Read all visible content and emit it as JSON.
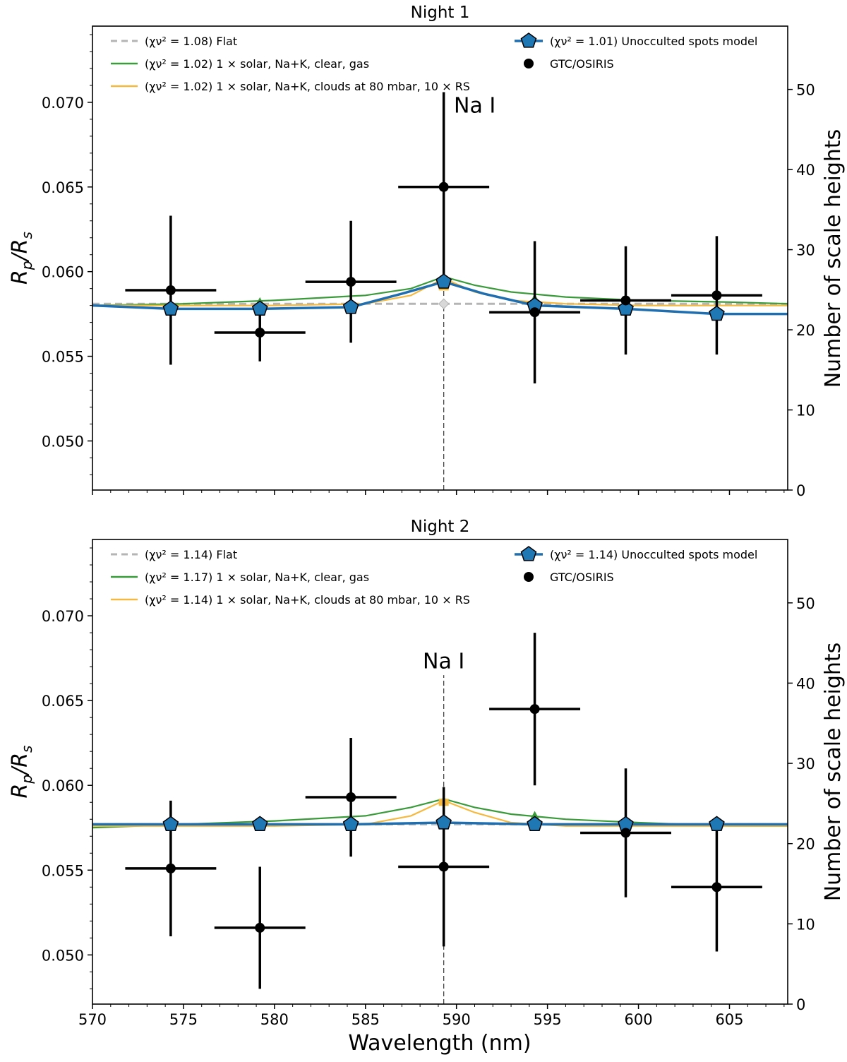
{
  "figure": {
    "xlabel": "Wavelength (nm)",
    "ylabel_left": "R_p/R_s",
    "ylabel_right": "Number of scale heights"
  },
  "chart_data": [
    {
      "type": "scatter",
      "title": "Night 1",
      "xlabel": "",
      "ylabel": "Rp/Rs",
      "y2label": "Number of scale heights",
      "xlim": [
        570,
        608.2
      ],
      "ylim": [
        0.0471,
        0.0745
      ],
      "y2lim": [
        0,
        57.9
      ],
      "xticks": [
        570,
        575,
        580,
        585,
        590,
        595,
        600,
        605
      ],
      "yticks": [
        0.05,
        0.055,
        0.06,
        0.065,
        0.07
      ],
      "ytick_labels": [
        "0.050",
        "0.055",
        "0.060",
        "0.065",
        "0.070"
      ],
      "y2ticks": [
        0,
        10,
        20,
        30,
        40,
        50
      ],
      "annotation": {
        "text": "Na I",
        "x": 589.3,
        "y": 0.0694,
        "line_from": 0.0471,
        "line_to": 0.0655
      },
      "legend_left": [
        {
          "key": "flat",
          "label": "(χν² = 1.08) Flat",
          "color": "#b5b5b5",
          "style": "dashed"
        },
        {
          "key": "clear",
          "label": "(χν² = 1.02) 1 × solar, Na+K, clear, gas",
          "color": "#3a9b3a",
          "style": "solid"
        },
        {
          "key": "clouds",
          "label": "(χν² = 1.02) 1 × solar, Na+K, clouds at 80 mbar, 10 × RS",
          "color": "#f5b93f",
          "style": "solid"
        }
      ],
      "legend_right": [
        {
          "key": "spots",
          "label": "(χν² = 1.01) Unocculted spots model",
          "color": "#1f6fb0",
          "style": "pentagon"
        },
        {
          "key": "data",
          "label": "GTC/OSIRIS",
          "color": "#000000",
          "style": "errorbar"
        }
      ],
      "series": [
        {
          "name": "Flat",
          "key": "flat",
          "x": [
            570,
            608.2
          ],
          "y": [
            0.0581,
            0.0581
          ]
        },
        {
          "name": "1 × solar, Na+K, clear, gas",
          "key": "clear",
          "x": [
            570,
            575,
            580,
            585,
            587.5,
            589.3,
            591,
            593,
            596,
            600,
            605,
            608.2
          ],
          "y": [
            0.058,
            0.0581,
            0.0583,
            0.0586,
            0.059,
            0.0597,
            0.0592,
            0.0588,
            0.0585,
            0.0583,
            0.0582,
            0.0581
          ]
        },
        {
          "name": "1 × solar, Na+K, clouds at 80 mbar, 10 × RS",
          "key": "clouds",
          "x": [
            570,
            575,
            580,
            585,
            587.5,
            589.3,
            591,
            593,
            596,
            600,
            605,
            608.2
          ],
          "y": [
            0.058,
            0.058,
            0.058,
            0.0581,
            0.0586,
            0.0596,
            0.0588,
            0.0583,
            0.0581,
            0.058,
            0.058,
            0.058
          ]
        },
        {
          "name": "Unocculted spots model",
          "key": "spots",
          "x": [
            570,
            574.3,
            579.2,
            584.2,
            587,
            589.3,
            591.5,
            594.3,
            599.3,
            604.3,
            608.2
          ],
          "y": [
            0.058,
            0.0578,
            0.0578,
            0.0579,
            0.0587,
            0.0594,
            0.0587,
            0.058,
            0.0578,
            0.0575,
            0.0575
          ]
        },
        {
          "name": "Flat (binned)",
          "key": "flat_markers",
          "x": [
            589.3
          ],
          "y": [
            0.0581
          ]
        },
        {
          "name": "Spots model (binned)",
          "key": "spots_markers",
          "x": [
            574.3,
            579.2,
            584.2,
            589.3,
            594.3,
            599.3,
            604.3
          ],
          "y": [
            0.0578,
            0.0578,
            0.0579,
            0.0594,
            0.058,
            0.0578,
            0.0575
          ]
        },
        {
          "name": "Clear model (binned)",
          "key": "clear_markers",
          "x": [
            579.2,
            594.3
          ],
          "y": [
            0.0582,
            0.0584
          ]
        },
        {
          "name": "Clouds model (binned)",
          "key": "clouds_markers",
          "x": [
            589.3
          ],
          "y": [
            0.0591
          ]
        },
        {
          "name": "GTC/OSIRIS",
          "key": "data",
          "x": [
            574.3,
            579.2,
            584.2,
            589.3,
            594.3,
            599.3,
            604.3
          ],
          "xerr": [
            2.5,
            2.5,
            2.5,
            2.5,
            2.5,
            2.5,
            2.5
          ],
          "y": [
            0.0589,
            0.0564,
            0.0594,
            0.065,
            0.0576,
            0.0583,
            0.0586
          ],
          "yerr": [
            0.0044,
            0.0017,
            0.0036,
            0.0056,
            0.0042,
            0.0032,
            0.0035
          ]
        }
      ]
    },
    {
      "type": "scatter",
      "title": "Night 2",
      "xlabel": "Wavelength (nm)",
      "ylabel": "Rp/Rs",
      "y2label": "Number of scale heights",
      "xlim": [
        570,
        608.2
      ],
      "ylim": [
        0.0471,
        0.0745
      ],
      "y2lim": [
        0,
        57.9
      ],
      "xticks": [
        570,
        575,
        580,
        585,
        590,
        595,
        600,
        605
      ],
      "yticks": [
        0.05,
        0.055,
        0.06,
        0.065,
        0.07
      ],
      "ytick_labels": [
        "0.050",
        "0.055",
        "0.060",
        "0.065",
        "0.070"
      ],
      "y2ticks": [
        0,
        10,
        20,
        30,
        40,
        50
      ],
      "annotation": {
        "text": "Na I",
        "x": 589.3,
        "y": 0.0669,
        "line_from": 0.0471,
        "line_to": 0.0665
      },
      "legend_left": [
        {
          "key": "flat",
          "label": "(χν² = 1.14) Flat",
          "color": "#b5b5b5",
          "style": "dashed"
        },
        {
          "key": "clear",
          "label": "(χν² = 1.17) 1 × solar, Na+K, clear, gas",
          "color": "#3a9b3a",
          "style": "solid"
        },
        {
          "key": "clouds",
          "label": "(χν² = 1.14) 1 × solar, Na+K, clouds at 80 mbar, 10 × RS",
          "color": "#f5b93f",
          "style": "solid"
        }
      ],
      "legend_right": [
        {
          "key": "spots",
          "label": "(χν² = 1.14) Unocculted spots model",
          "color": "#1f6fb0",
          "style": "pentagon"
        },
        {
          "key": "data",
          "label": "GTC/OSIRIS",
          "color": "#000000",
          "style": "errorbar"
        }
      ],
      "series": [
        {
          "name": "Flat",
          "key": "flat",
          "x": [
            570,
            608.2
          ],
          "y": [
            0.0577,
            0.0577
          ]
        },
        {
          "name": "1 × solar, Na+K, clear, gas",
          "key": "clear",
          "x": [
            570,
            575,
            580,
            585,
            587.5,
            589.3,
            591,
            593,
            596,
            600,
            605,
            608.2
          ],
          "y": [
            0.0575,
            0.0577,
            0.0579,
            0.0582,
            0.0587,
            0.0592,
            0.0587,
            0.0583,
            0.058,
            0.0578,
            0.0576,
            0.0576
          ]
        },
        {
          "name": "1 × solar, Na+K, clouds at 80 mbar, 10 × RS",
          "key": "clouds",
          "x": [
            570,
            575,
            580,
            585,
            587.5,
            589.3,
            591,
            593,
            596,
            600,
            605,
            608.2
          ],
          "y": [
            0.0576,
            0.0576,
            0.0576,
            0.0577,
            0.0582,
            0.0591,
            0.0584,
            0.0578,
            0.0576,
            0.0576,
            0.0576,
            0.0576
          ]
        },
        {
          "name": "Unocculted spots model",
          "key": "spots",
          "x": [
            570,
            574.3,
            579.2,
            584.2,
            589.3,
            594.3,
            599.3,
            604.3,
            608.2
          ],
          "y": [
            0.0577,
            0.0577,
            0.0577,
            0.0577,
            0.0578,
            0.0577,
            0.0577,
            0.0577,
            0.0577
          ]
        },
        {
          "name": "Flat (binned)",
          "key": "flat_markers",
          "x": [
            589.3
          ],
          "y": [
            0.0577
          ]
        },
        {
          "name": "Spots model (binned)",
          "key": "spots_markers",
          "x": [
            574.3,
            579.2,
            584.2,
            589.3,
            594.3,
            599.3,
            604.3
          ],
          "y": [
            0.0577,
            0.0577,
            0.0577,
            0.0578,
            0.0577,
            0.0577,
            0.0577
          ]
        },
        {
          "name": "Clear model (binned)",
          "key": "clear_markers",
          "x": [
            594.3
          ],
          "y": [
            0.0582
          ]
        },
        {
          "name": "Clouds model (binned)",
          "key": "clouds_markers",
          "x": [
            589.3
          ],
          "y": [
            0.059
          ]
        },
        {
          "name": "GTC/OSIRIS",
          "key": "data",
          "x": [
            574.3,
            579.2,
            584.2,
            589.3,
            594.3,
            599.3,
            604.3
          ],
          "xerr": [
            2.5,
            2.5,
            2.5,
            2.5,
            2.5,
            2.5,
            2.5
          ],
          "y": [
            0.0551,
            0.0516,
            0.0593,
            0.0552,
            0.0645,
            0.0572,
            0.054
          ],
          "yerr": [
            0.004,
            0.0036,
            0.0035,
            0.0047,
            0.0045,
            0.0038,
            0.0038
          ]
        }
      ]
    }
  ]
}
